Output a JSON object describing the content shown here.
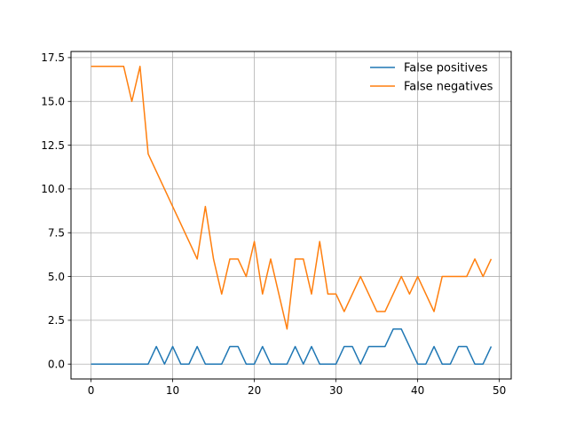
{
  "chart_data": {
    "type": "line",
    "title": "",
    "xlabel": "",
    "ylabel": "",
    "xlim": [
      -2.45,
      51.45
    ],
    "ylim": [
      -0.85,
      17.85
    ],
    "xticks": [
      0,
      10,
      20,
      30,
      40,
      50
    ],
    "yticks": [
      0.0,
      2.5,
      5.0,
      7.5,
      10.0,
      12.5,
      15.0,
      17.5
    ],
    "xtick_labels": [
      "0",
      "10",
      "20",
      "30",
      "40",
      "50"
    ],
    "ytick_labels": [
      "0.0",
      "2.5",
      "5.0",
      "7.5",
      "10.0",
      "12.5",
      "15.0",
      "17.5"
    ],
    "grid": true,
    "legend_position": "top-right",
    "x": [
      0,
      1,
      2,
      3,
      4,
      5,
      6,
      7,
      8,
      9,
      10,
      11,
      12,
      13,
      14,
      15,
      16,
      17,
      18,
      19,
      20,
      21,
      22,
      23,
      24,
      25,
      26,
      27,
      28,
      29,
      30,
      31,
      32,
      33,
      34,
      35,
      36,
      37,
      38,
      39,
      40,
      41,
      42,
      43,
      44,
      45,
      46,
      47,
      48,
      49
    ],
    "series": [
      {
        "name": "False positives",
        "color": "#1f77b4",
        "values": [
          0,
          0,
          0,
          0,
          0,
          0,
          0,
          0,
          1,
          0,
          1,
          0,
          0,
          1,
          0,
          0,
          0,
          1,
          1,
          0,
          0,
          1,
          0,
          0,
          0,
          1,
          0,
          1,
          0,
          0,
          0,
          1,
          1,
          0,
          1,
          1,
          1,
          2,
          2,
          1,
          0,
          0,
          1,
          0,
          0,
          1,
          1,
          0,
          0,
          1
        ]
      },
      {
        "name": "False negatives",
        "color": "#ff7f0e",
        "values": [
          17,
          17,
          17,
          17,
          17,
          15,
          17,
          12,
          11,
          10,
          9,
          8,
          7,
          6,
          9,
          6,
          4,
          6,
          6,
          5,
          7,
          4,
          6,
          4,
          2,
          6,
          6,
          4,
          7,
          4,
          4,
          3,
          4,
          5,
          4,
          3,
          3,
          4,
          5,
          4,
          5,
          4,
          3,
          5,
          5,
          5,
          5,
          6,
          5,
          6
        ]
      }
    ]
  }
}
